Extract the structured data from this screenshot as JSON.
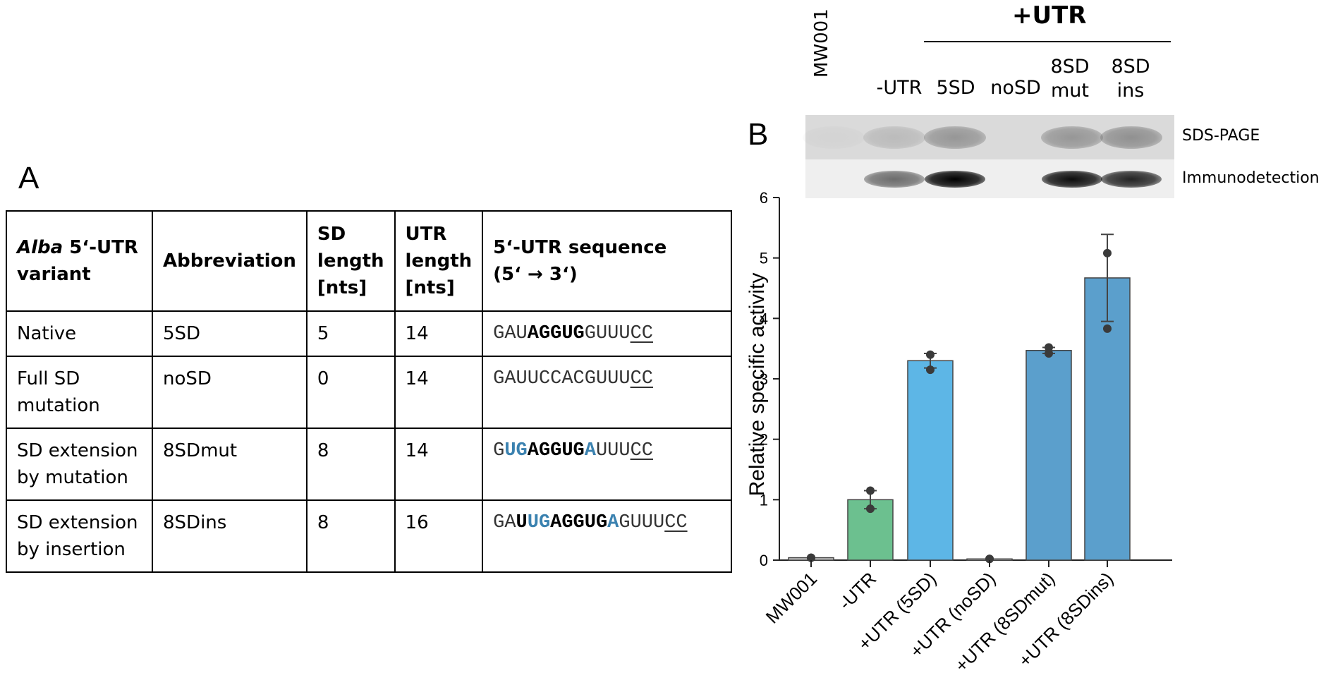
{
  "panels": {
    "a": "A",
    "b": "B"
  },
  "table": {
    "headers": {
      "variant_italic": "Alba",
      "variant_rest_1": " 5‘-UTR",
      "variant_rest_2": "variant",
      "abbreviation": "Abbreviation",
      "sd_length_1": "SD",
      "sd_length_2": "length",
      "sd_length_3": "[nts]",
      "utr_length_1": "UTR",
      "utr_length_2": "length",
      "utr_length_3": "[nts]",
      "sequence_1": "5‘-UTR sequence",
      "sequence_2": "(5‘ → 3‘)"
    },
    "rows": [
      {
        "variant_1": "Native",
        "variant_2": "",
        "abbreviation": "5SD",
        "sd_length": "5",
        "utr_length": "14",
        "seq": [
          {
            "t": "GAU",
            "s": "n"
          },
          {
            "t": "AGGUG",
            "s": "b"
          },
          {
            "t": "GUUU",
            "s": "n"
          },
          {
            "t": "CC",
            "s": "u"
          }
        ]
      },
      {
        "variant_1": "Full SD",
        "variant_2": "mutation",
        "abbreviation": "noSD",
        "sd_length": "0",
        "utr_length": "14",
        "seq": [
          {
            "t": "GAUUCCACGUUU",
            "s": "n"
          },
          {
            "t": "CC",
            "s": "u"
          }
        ]
      },
      {
        "variant_1": "SD extension",
        "variant_2": "by mutation",
        "abbreviation": "8SDmut",
        "sd_length": "8",
        "utr_length": "14",
        "seq": [
          {
            "t": "G",
            "s": "n"
          },
          {
            "t": "UG",
            "s": "c"
          },
          {
            "t": "AGGUG",
            "s": "b"
          },
          {
            "t": "A",
            "s": "c"
          },
          {
            "t": "UUU",
            "s": "n"
          },
          {
            "t": "CC",
            "s": "u"
          }
        ]
      },
      {
        "variant_1": "SD extension",
        "variant_2": "by insertion",
        "abbreviation": "8SDins",
        "sd_length": "8",
        "utr_length": "16",
        "seq": [
          {
            "t": "GA",
            "s": "n"
          },
          {
            "t": "U",
            "s": "b"
          },
          {
            "t": "UG",
            "s": "c"
          },
          {
            "t": "AGGUG",
            "s": "b"
          },
          {
            "t": "A",
            "s": "c"
          },
          {
            "t": "GUUU",
            "s": "n"
          },
          {
            "t": "CC",
            "s": "u"
          }
        ]
      }
    ]
  },
  "gel": {
    "group_label": "+UTR",
    "lanes": [
      {
        "line1": "MW001",
        "line2": "",
        "rotated": true
      },
      {
        "line1": "-UTR",
        "line2": ""
      },
      {
        "line1": "5SD",
        "line2": ""
      },
      {
        "line1": "noSD",
        "line2": ""
      },
      {
        "line1": "8SD",
        "line2": "mut"
      },
      {
        "line1": "8SD",
        "line2": "ins"
      }
    ],
    "row_labels": {
      "sds": "SDS-PAGE",
      "immuno": "Immunodetection"
    },
    "bands_sds": [
      0.05,
      0.25,
      0.55,
      0.0,
      0.55,
      0.6
    ],
    "bands_immuno": [
      0.0,
      0.55,
      1.0,
      0.0,
      0.95,
      0.85
    ]
  },
  "chart_data": {
    "type": "bar",
    "categories": [
      "MW001",
      "-UTR",
      "+UTR (5SD)",
      "+UTR (noSD)",
      "+UTR (8SDmut)",
      "+UTR (8SDins)"
    ],
    "values": [
      0.04,
      1.0,
      3.3,
      0.02,
      3.47,
      4.67
    ],
    "errors": [
      0.02,
      0.15,
      0.12,
      0.01,
      0.05,
      0.72
    ],
    "points": [
      [
        0.04,
        0.04
      ],
      [
        1.15,
        0.85
      ],
      [
        3.4,
        3.15
      ],
      [
        0.02,
        0.02
      ],
      [
        3.52,
        3.42
      ],
      [
        5.08,
        3.83
      ]
    ],
    "colors": [
      "#c9c9c9",
      "#6cc08f",
      "#5db6e6",
      "#c9c9c9",
      "#5b9fcc",
      "#5b9fcc"
    ],
    "ylabel": "Relative specific activity",
    "xlabel": "",
    "ylim": [
      0,
      6
    ],
    "yticks": [
      "0",
      "1",
      "2",
      "3",
      "4",
      "5",
      "6"
    ],
    "grid": false
  }
}
